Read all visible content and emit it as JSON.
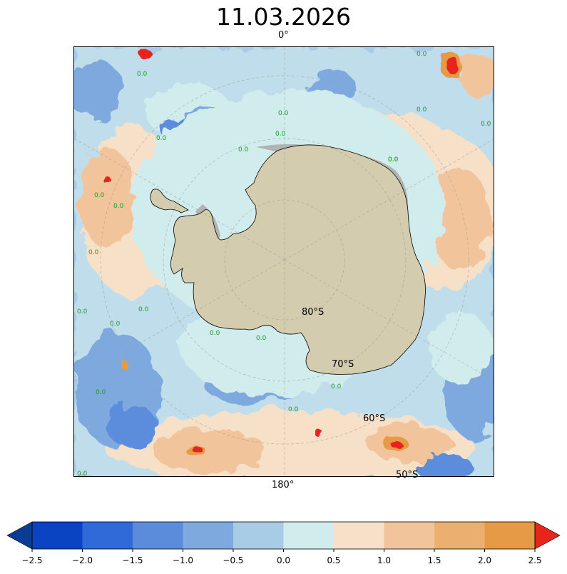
{
  "title": "11.03.2026",
  "map": {
    "projection": "south polar stereographic",
    "top_label": "0°",
    "bottom_label": "180°",
    "lat_labels": [
      "80°S",
      "70°S",
      "60°S",
      "50°S"
    ],
    "contour_label": "0.0",
    "land_color": "#d4ccae",
    "ice_shelf_color": "#b3b3b3"
  },
  "colorbar": {
    "ticks": [
      "−2.5",
      "−2.0",
      "−1.5",
      "−1.0",
      "−0.5",
      "0.0",
      "0.5",
      "1.0",
      "1.5",
      "2.0",
      "2.5"
    ],
    "colors": [
      "#0a44c2",
      "#2f6ad8",
      "#5b8cdc",
      "#7ea9df",
      "#a8cbe6",
      "#d1ecec",
      "#f7e0c8",
      "#f2c49c",
      "#ebb06f",
      "#e79a45"
    ],
    "under_color": "#0a3c96",
    "over_color": "#e8241b"
  }
}
